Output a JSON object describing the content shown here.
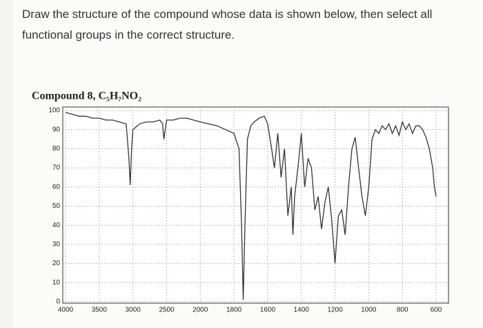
{
  "question": "Draw the structure of the compound whose data is shown below, then select all functional groups in the correct structure.",
  "chart_data": {
    "type": "line",
    "title": "Compound 8, C₅H₇NO₂",
    "color": "#333333",
    "grid": true,
    "x": [
      4000,
      3900,
      3800,
      3700,
      3600,
      3500,
      3400,
      3300,
      3200,
      3100,
      3060,
      3040,
      3020,
      3000,
      2900,
      2800,
      2700,
      2600,
      2560,
      2540,
      2500,
      2400,
      2300,
      2200,
      2100,
      2000,
      1900,
      1850,
      1800,
      1770,
      1755,
      1745,
      1735,
      1720,
      1700,
      1680,
      1650,
      1620,
      1600,
      1580,
      1560,
      1540,
      1520,
      1500,
      1480,
      1460,
      1450,
      1440,
      1420,
      1400,
      1380,
      1360,
      1340,
      1320,
      1300,
      1280,
      1260,
      1240,
      1220,
      1200,
      1180,
      1160,
      1140,
      1120,
      1100,
      1080,
      1060,
      1040,
      1020,
      1000,
      980,
      960,
      940,
      920,
      900,
      880,
      860,
      840,
      820,
      800,
      780,
      760,
      740,
      720,
      700,
      680,
      660,
      640,
      620,
      610,
      600
    ],
    "values": [
      99,
      98,
      97,
      97,
      96,
      96,
      95,
      95,
      94,
      93,
      75,
      61,
      80,
      90,
      93,
      94,
      94,
      95,
      93,
      85,
      95,
      95,
      96,
      96,
      95,
      94,
      92,
      90,
      88,
      80,
      40,
      1,
      40,
      85,
      92,
      94,
      96,
      97,
      93,
      82,
      70,
      88,
      65,
      80,
      45,
      60,
      35,
      55,
      70,
      88,
      60,
      75,
      70,
      48,
      55,
      38,
      52,
      60,
      43,
      20,
      45,
      48,
      35,
      60,
      80,
      86,
      70,
      55,
      45,
      60,
      85,
      90,
      88,
      92,
      90,
      93,
      88,
      92,
      87,
      94,
      90,
      93,
      88,
      92,
      92,
      90,
      86,
      80,
      70,
      60,
      55
    ],
    "xlim": [
      4000,
      600
    ],
    "xticks": [
      4000,
      3500,
      3000,
      2500,
      2000,
      1800,
      1600,
      1400,
      1200,
      1000,
      800,
      600
    ],
    "ylim": [
      0,
      100
    ],
    "yticks": [
      0,
      10,
      20,
      30,
      40,
      50,
      60,
      70,
      80,
      90,
      100
    ]
  }
}
